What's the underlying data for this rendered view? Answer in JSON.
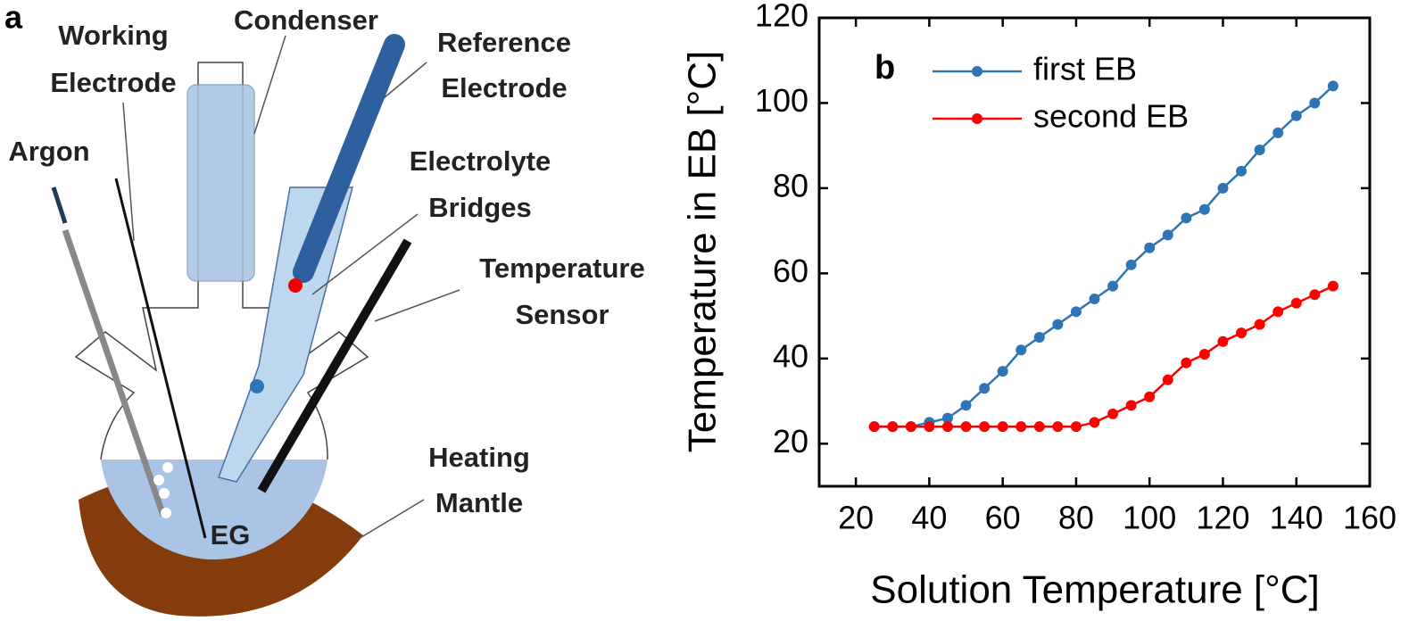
{
  "diagram": {
    "panel_label": "a",
    "labels": {
      "working_electrode": [
        "Working",
        "Electrode"
      ],
      "condenser": "Condenser",
      "reference_electrode": [
        "Reference",
        "Electrode"
      ],
      "argon": "Argon",
      "electrolyte_bridges": [
        "Electrolyte",
        "Bridges"
      ],
      "temperature_sensor": [
        "Temperature",
        "Sensor"
      ],
      "heating_mantle": [
        "Heating",
        "Mantle"
      ],
      "solution": "EG"
    }
  },
  "chart_data": {
    "type": "line",
    "panel_label": "b",
    "x_label": "Solution Temperature [°C]",
    "y_label": "Temperature in EB [°C]",
    "x": [
      25,
      30,
      35,
      40,
      45,
      50,
      55,
      60,
      65,
      70,
      75,
      80,
      85,
      90,
      95,
      100,
      105,
      110,
      115,
      120,
      125,
      130,
      135,
      140,
      145,
      150
    ],
    "series": [
      {
        "name": "first EB",
        "color": "#2e75b6",
        "values": [
          24,
          24,
          24,
          25,
          26,
          29,
          33,
          37,
          42,
          45,
          48,
          51,
          54,
          57,
          62,
          66,
          69,
          73,
          75,
          80,
          84,
          89,
          93,
          97,
          100,
          104
        ]
      },
      {
        "name": "second EB",
        "color": "#ff0000",
        "values": [
          24,
          24,
          24,
          24,
          24,
          24,
          24,
          24,
          24,
          24,
          24,
          24,
          25,
          27,
          29,
          31,
          35,
          39,
          41,
          44,
          46,
          48,
          51,
          53,
          55,
          57
        ]
      }
    ],
    "xlim": [
      10,
      160
    ],
    "xticks": [
      20,
      40,
      60,
      80,
      100,
      120,
      140,
      160
    ],
    "ylim": [
      10,
      120
    ],
    "yticks": [
      20,
      40,
      60,
      80,
      100,
      120
    ],
    "legend": "upper left"
  }
}
